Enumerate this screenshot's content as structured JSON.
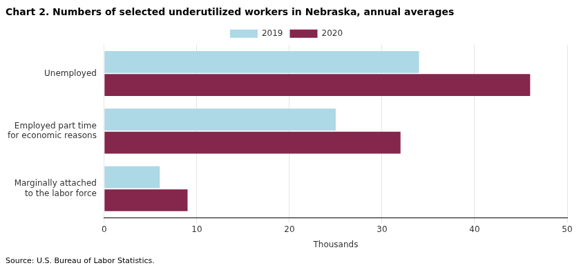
{
  "chart_data": {
    "type": "bar",
    "orientation": "horizontal",
    "title": "Chart 2. Numbers of selected underutilized workers in Nebraska, annual averages",
    "categories": [
      "Unemployed",
      "Employed part time\nfor economic reasons",
      "Marginally attached\nto the labor force"
    ],
    "series": [
      {
        "name": "2019",
        "color": "#ADD8E6",
        "values": [
          34,
          25,
          6
        ]
      },
      {
        "name": "2020",
        "color": "#85264C",
        "values": [
          46,
          32,
          9
        ]
      }
    ],
    "xlabel": "Thousands",
    "xlim": [
      0,
      50
    ],
    "xticks": [
      0,
      10,
      20,
      30,
      40,
      50
    ],
    "grid": true,
    "legend": "top",
    "annotation": "Source: U.S. Bureau of Labor Statistics."
  }
}
